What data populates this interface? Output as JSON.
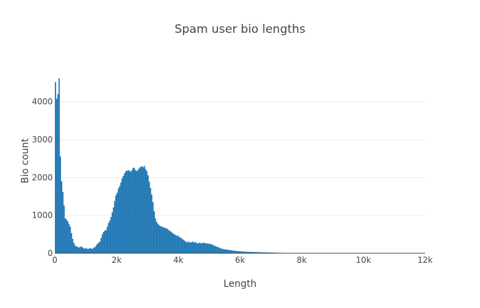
{
  "chart_data": {
    "type": "bar",
    "title": "Spam user bio lengths",
    "xlabel": "Length",
    "ylabel": "Bio count",
    "xlim": [
      0,
      12000
    ],
    "ylim": [
      0,
      4700
    ],
    "bin_width": 40,
    "x_ticks": [
      0,
      2000,
      4000,
      6000,
      8000,
      10000,
      12000
    ],
    "x_tick_labels": [
      "0",
      "2k",
      "4k",
      "6k",
      "8k",
      "10k",
      "12k"
    ],
    "y_ticks": [
      0,
      1000,
      2000,
      3000,
      4000
    ],
    "y_tick_labels": [
      "0",
      "1000",
      "2000",
      "3000",
      "4000"
    ],
    "grid": true,
    "bar_color": "#1f77b4",
    "bins_start": [
      0,
      40,
      80,
      120,
      160,
      200,
      240,
      280,
      320,
      360,
      400,
      440,
      480,
      520,
      560,
      600,
      640,
      680,
      720,
      760,
      800,
      840,
      880,
      920,
      960,
      1000,
      1040,
      1080,
      1120,
      1160,
      1200,
      1240,
      1280,
      1320,
      1360,
      1400,
      1440,
      1480,
      1520,
      1560,
      1600,
      1640,
      1680,
      1720,
      1760,
      1800,
      1840,
      1880,
      1920,
      1960,
      2000,
      2040,
      2080,
      2120,
      2160,
      2200,
      2240,
      2280,
      2320,
      2360,
      2400,
      2440,
      2480,
      2520,
      2560,
      2600,
      2640,
      2680,
      2720,
      2760,
      2800,
      2840,
      2880,
      2920,
      2960,
      3000,
      3040,
      3080,
      3120,
      3160,
      3200,
      3240,
      3280,
      3320,
      3360,
      3400,
      3440,
      3480,
      3520,
      3560,
      3600,
      3640,
      3680,
      3720,
      3760,
      3800,
      3840,
      3880,
      3920,
      3960,
      4000,
      4040,
      4080,
      4120,
      4160,
      4200,
      4240,
      4280,
      4320,
      4360,
      4400,
      4440,
      4480,
      4520,
      4560,
      4600,
      4640,
      4680,
      4720,
      4760,
      4800,
      4840,
      4880,
      4920,
      4960,
      5000,
      5040,
      5080,
      5120,
      5160,
      5200,
      5240,
      5280,
      5320,
      5360,
      5400,
      5440,
      5480,
      5520,
      5560,
      5600,
      5640,
      5680,
      5720,
      5760,
      5800,
      5840,
      5880,
      5920,
      5960,
      6000,
      6040,
      6080,
      6120,
      6160,
      6200,
      6240,
      6280,
      6320,
      6360,
      6400,
      6440,
      6480,
      6520,
      6560,
      6600,
      6640,
      6680,
      6720,
      6760,
      6800,
      6840,
      6880,
      6920,
      6960,
      7000,
      7040,
      7080,
      7120,
      7160,
      7200,
      7240,
      7280,
      7320,
      7360,
      7400,
      7440,
      7480,
      7520,
      7560,
      7600,
      7640,
      7680,
      7720,
      7760,
      7800,
      7840,
      7880,
      7920,
      7960,
      8000,
      8040,
      8080,
      8120,
      8160,
      8200,
      8240,
      8280,
      8320,
      8360,
      8400,
      8440,
      8480,
      8520,
      8560,
      8600,
      8640,
      8680,
      8720,
      8760,
      8800,
      8840,
      8880,
      8920,
      8960,
      9000,
      9040,
      9080,
      9120,
      9160,
      9200,
      9240,
      9280,
      9320,
      9360,
      9400,
      9440,
      9480,
      9520,
      9560,
      9600,
      9640,
      9680,
      9720,
      9760,
      9800,
      9840,
      9880,
      9920,
      9960,
      10000,
      10040,
      10080,
      10120,
      10160,
      10200,
      10240,
      10280,
      10320,
      10360,
      10400,
      10440,
      10480,
      10520,
      10560,
      10600,
      10640,
      10680,
      10720,
      10760,
      10800,
      10840,
      10880,
      10920,
      10960,
      11000,
      11040,
      11080,
      11120,
      11160,
      11200,
      11240,
      11280,
      11320,
      11360,
      11400,
      11440,
      11480,
      11520,
      11560,
      11600,
      11640,
      11680,
      11720,
      11760,
      11800,
      11840,
      11880,
      11920,
      11960
    ],
    "values": [
      4520,
      4080,
      4200,
      4620,
      2560,
      1900,
      1620,
      1260,
      920,
      890,
      840,
      770,
      700,
      530,
      380,
      270,
      200,
      180,
      170,
      150,
      170,
      180,
      150,
      130,
      120,
      140,
      110,
      120,
      140,
      120,
      120,
      150,
      160,
      210,
      250,
      280,
      310,
      400,
      500,
      560,
      600,
      610,
      700,
      800,
      860,
      960,
      1080,
      1210,
      1380,
      1530,
      1600,
      1710,
      1770,
      1870,
      1980,
      2040,
      2110,
      2170,
      2180,
      2190,
      2180,
      2150,
      2200,
      2260,
      2250,
      2190,
      2170,
      2210,
      2250,
      2280,
      2300,
      2270,
      2310,
      2230,
      2170,
      2060,
      1890,
      1720,
      1550,
      1350,
      1110,
      920,
      830,
      780,
      740,
      720,
      710,
      690,
      680,
      670,
      650,
      640,
      600,
      590,
      560,
      530,
      510,
      490,
      460,
      470,
      440,
      420,
      400,
      370,
      350,
      320,
      300,
      290,
      310,
      280,
      290,
      310,
      280,
      300,
      280,
      260,
      270,
      280,
      260,
      270,
      280,
      270,
      260,
      260,
      250,
      250,
      240,
      230,
      210,
      200,
      180,
      170,
      160,
      140,
      130,
      120,
      110,
      105,
      100,
      95,
      90,
      85,
      80,
      75,
      70,
      66,
      62,
      58,
      55,
      52,
      50,
      48,
      46,
      44,
      42,
      40,
      38,
      37,
      36,
      35,
      34,
      33,
      32,
      31,
      30,
      29,
      28,
      27,
      26,
      25,
      24,
      23,
      22,
      21,
      20,
      19,
      18,
      17,
      16,
      15,
      14,
      13,
      12,
      11,
      11,
      10,
      10,
      9,
      9,
      8,
      8,
      7,
      7,
      7,
      6,
      6,
      6,
      5,
      5,
      5,
      5,
      5,
      5,
      5,
      5,
      5,
      4,
      4,
      4,
      4,
      4,
      4,
      4,
      4,
      4,
      4,
      4,
      4,
      4,
      4,
      4,
      4,
      4,
      4,
      4,
      4,
      4,
      4,
      4,
      4,
      4,
      4,
      4,
      4,
      4,
      4,
      4,
      4,
      4,
      4,
      4,
      4,
      4,
      4,
      4,
      4,
      4,
      4,
      4,
      4,
      4,
      4,
      4,
      4,
      4,
      4,
      4,
      4,
      4,
      4,
      4,
      4,
      4,
      4,
      4,
      4,
      4,
      4,
      4,
      4,
      4,
      4,
      4,
      4,
      4,
      4,
      4,
      4,
      4,
      4,
      4,
      4,
      4,
      4,
      4,
      4,
      4,
      4,
      4,
      4,
      4,
      4,
      4,
      4,
      4,
      4,
      4,
      4,
      4,
      4,
      4,
      4,
      4,
      4,
      4,
      4,
      4,
      4,
      4,
      4,
      4,
      4,
      4,
      4,
      4,
      4,
      4
    ]
  }
}
